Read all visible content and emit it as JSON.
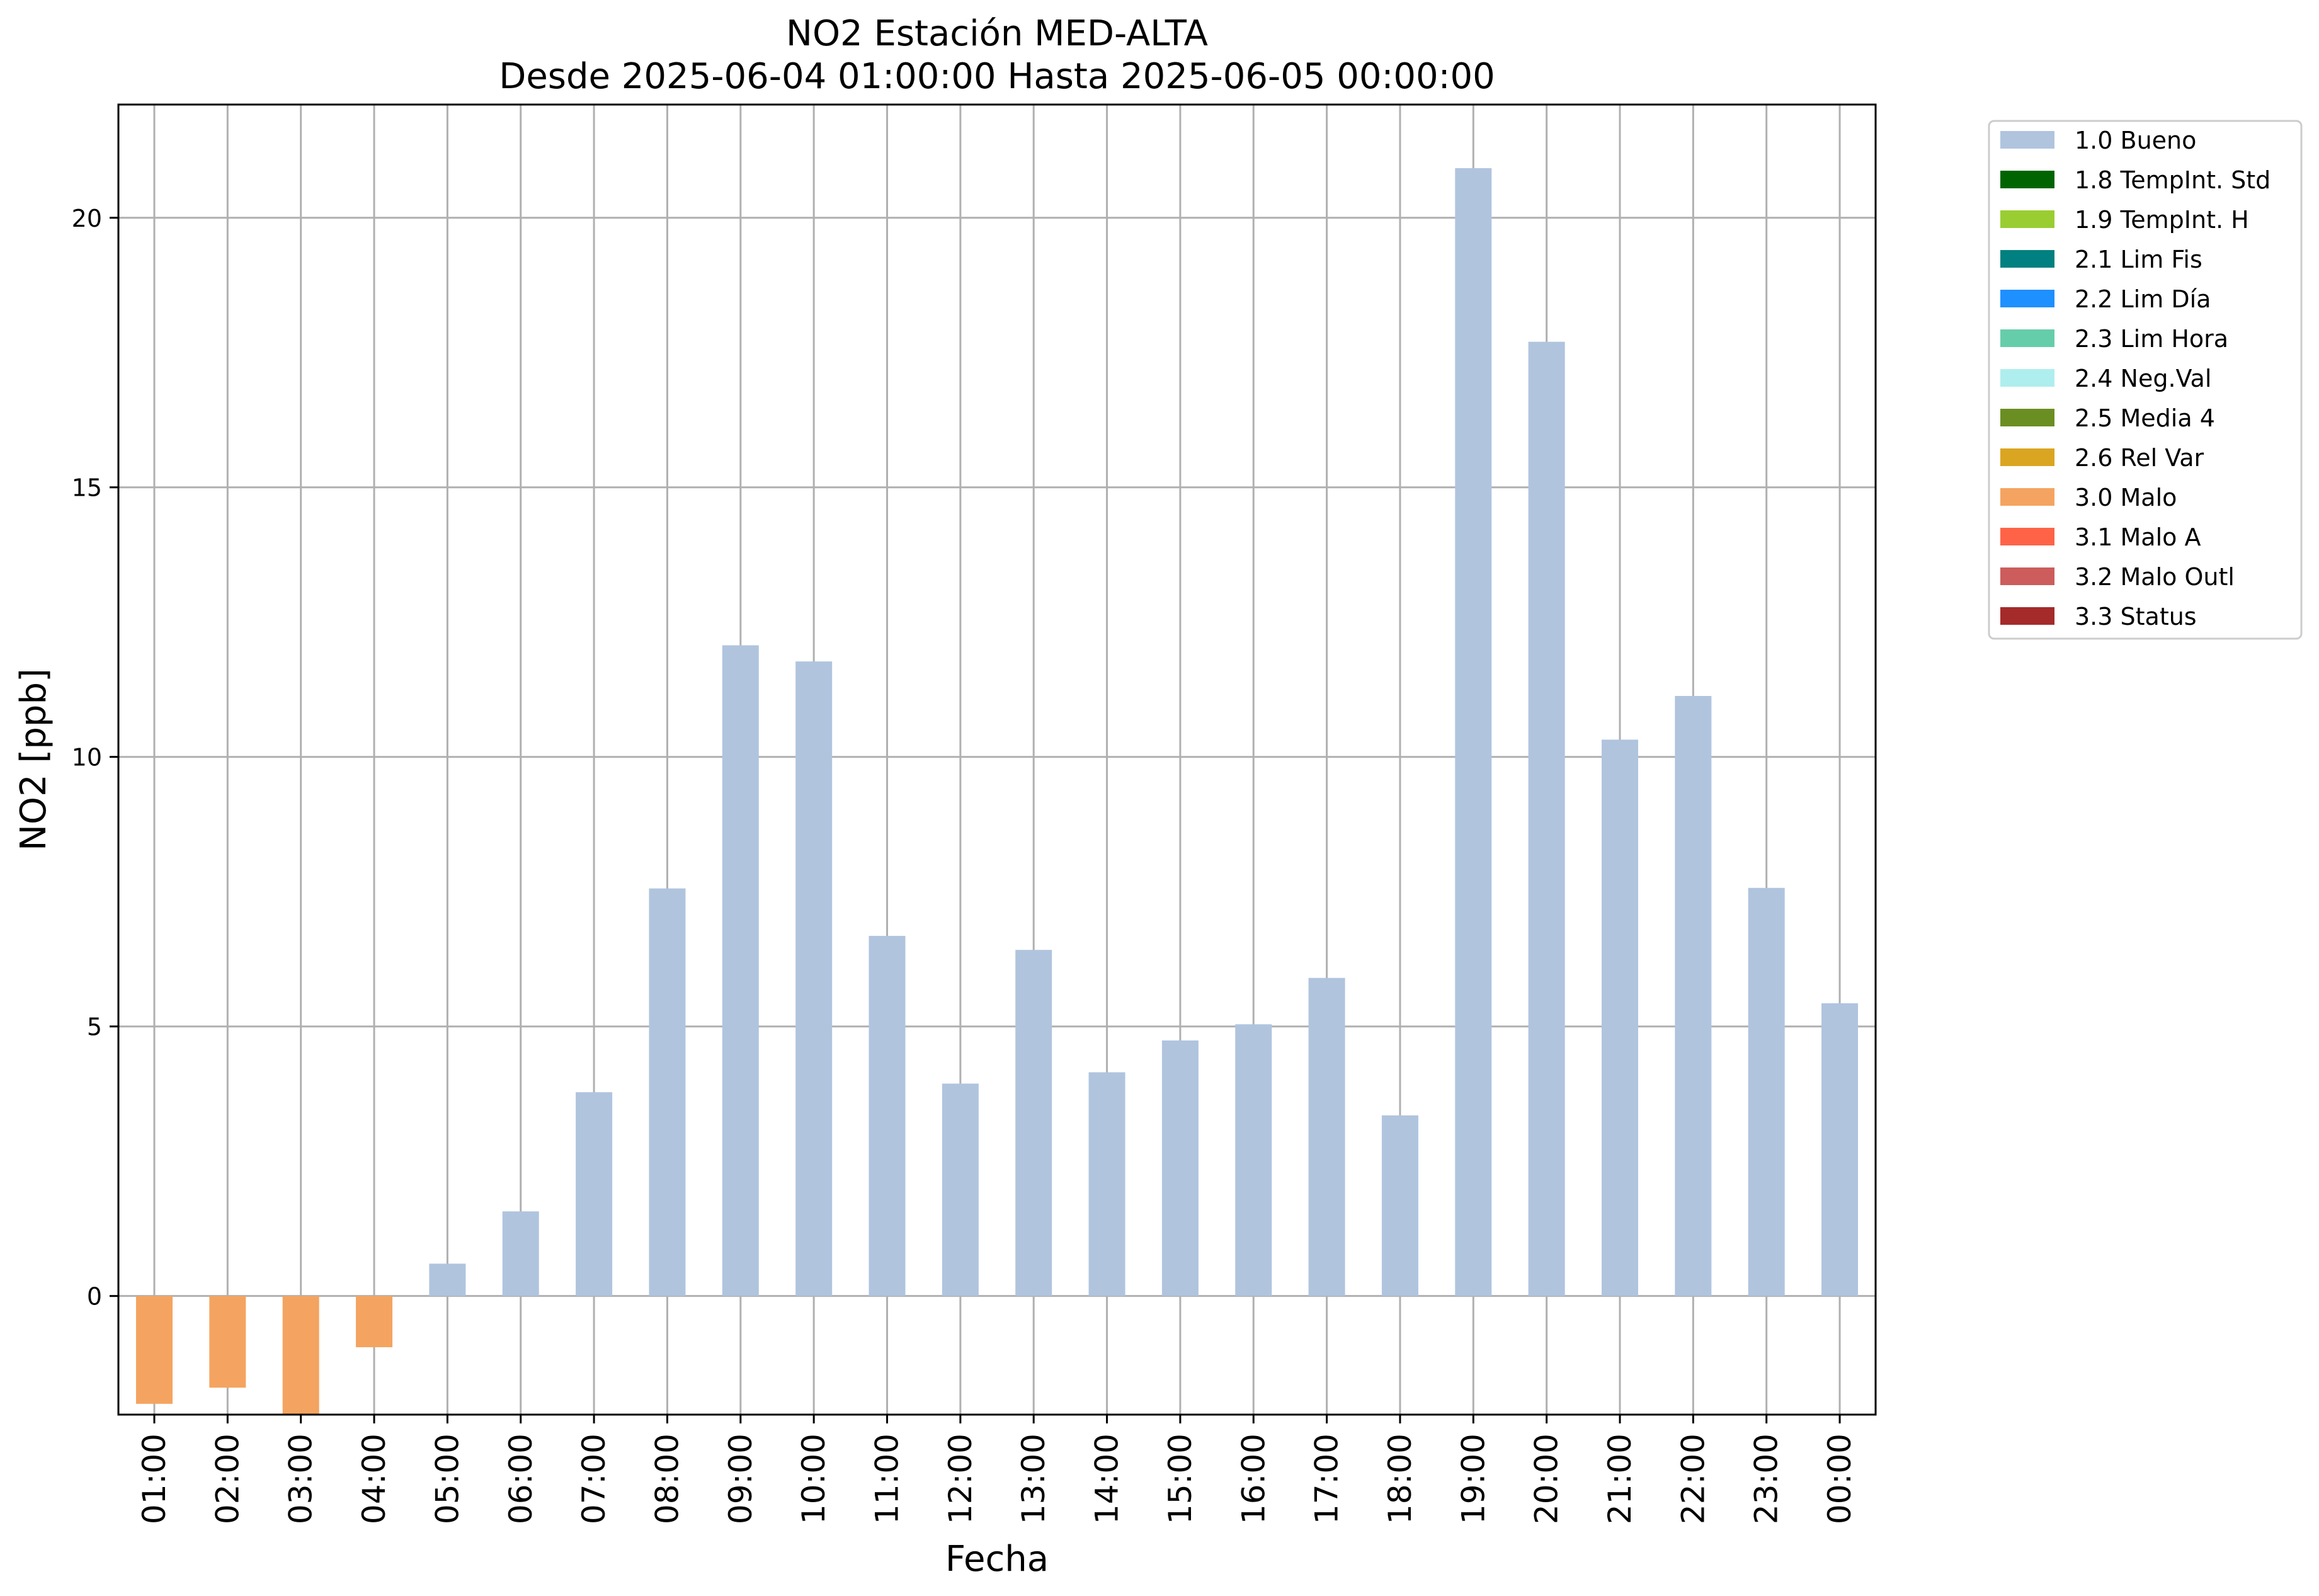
{
  "chart_data": {
    "type": "bar",
    "title": "NO2 Estación MED-ALTA",
    "subtitle": "Desde 2025-06-04 01:00:00 Hasta 2025-06-05 00:00:00",
    "xlabel": "Fecha",
    "ylabel": "NO2 [ppb]",
    "ylim": [
      -2.2,
      22.1
    ],
    "yticks": [
      0,
      5,
      10,
      15,
      20
    ],
    "grid": true,
    "legend_position": "outside-right-top",
    "categories": [
      "01:00",
      "02:00",
      "03:00",
      "04:00",
      "05:00",
      "06:00",
      "07:00",
      "08:00",
      "09:00",
      "10:00",
      "11:00",
      "12:00",
      "13:00",
      "14:00",
      "15:00",
      "16:00",
      "17:00",
      "18:00",
      "19:00",
      "20:00",
      "21:00",
      "22:00",
      "23:00",
      "00:00"
    ],
    "values": [
      -2.0,
      -1.7,
      -2.2,
      -0.95,
      0.6,
      1.57,
      3.78,
      7.56,
      12.07,
      11.77,
      6.68,
      3.94,
      6.42,
      4.15,
      4.74,
      5.04,
      5.9,
      3.35,
      20.92,
      17.7,
      10.32,
      11.13,
      7.57,
      5.43
    ],
    "flags": [
      "3.0 Malo",
      "3.0 Malo",
      "3.0 Malo",
      "3.0 Malo",
      "1.0 Bueno",
      "1.0 Bueno",
      "1.0 Bueno",
      "1.0 Bueno",
      "1.0 Bueno",
      "1.0 Bueno",
      "1.0 Bueno",
      "1.0 Bueno",
      "1.0 Bueno",
      "1.0 Bueno",
      "1.0 Bueno",
      "1.0 Bueno",
      "1.0 Bueno",
      "1.0 Bueno",
      "1.0 Bueno",
      "1.0 Bueno",
      "1.0 Bueno",
      "1.0 Bueno",
      "1.0 Bueno",
      "1.0 Bueno"
    ],
    "legend": [
      {
        "label": "1.0 Bueno",
        "color": "#b0c4de"
      },
      {
        "label": "1.8 TempInt. Std",
        "color": "#006400"
      },
      {
        "label": "1.9 TempInt. H",
        "color": "#9acd32"
      },
      {
        "label": "2.1 Lim Fis",
        "color": "#008080"
      },
      {
        "label": "2.2 Lim Día",
        "color": "#1e90ff"
      },
      {
        "label": "2.3 Lim Hora",
        "color": "#66cdaa"
      },
      {
        "label": "2.4 Neg.Val",
        "color": "#afeeee"
      },
      {
        "label": "2.5 Media 4",
        "color": "#6b8e23"
      },
      {
        "label": "2.6 Rel Var",
        "color": "#daa520"
      },
      {
        "label": "3.0 Malo",
        "color": "#f4a460"
      },
      {
        "label": "3.1 Malo A",
        "color": "#ff6347"
      },
      {
        "label": "3.2 Malo Outl",
        "color": "#cd5c5c"
      },
      {
        "label": "3.3 Status",
        "color": "#a52a2a"
      }
    ]
  }
}
